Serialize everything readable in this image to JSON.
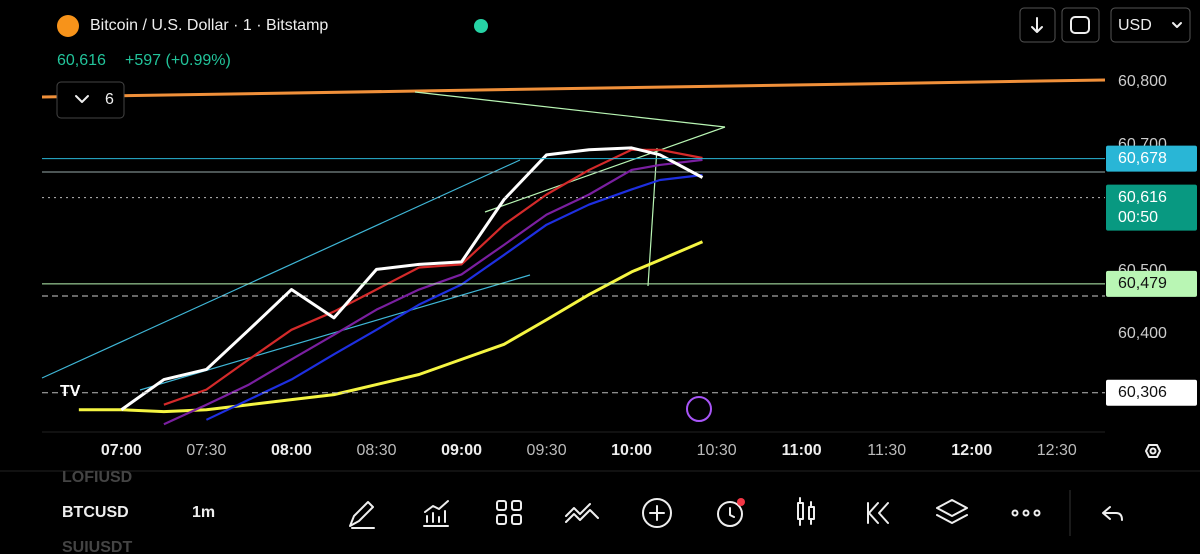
{
  "header": {
    "title": "Bitcoin / U.S. Dollar · 1 · Bitstamp",
    "price": "60,616",
    "change": "+597 (+0.99%)",
    "indicator_count": "6",
    "currency": "USD"
  },
  "chart_data": {
    "type": "line",
    "x": [
      "06:45",
      "07:00",
      "07:15",
      "07:30",
      "07:45",
      "08:00",
      "08:15",
      "08:30",
      "08:45",
      "09:00",
      "09:15",
      "09:30",
      "09:45",
      "10:00",
      "10:10",
      "10:25"
    ],
    "xlim": [
      "06:32",
      "12:47"
    ],
    "xticks": [
      "07:00",
      "07:30",
      "08:00",
      "08:30",
      "09:00",
      "09:30",
      "10:00",
      "10:30",
      "11:00",
      "11:30",
      "12:00",
      "12:30"
    ],
    "ylim": [
      60250,
      60930
    ],
    "yticks": [
      {
        "value": 60800,
        "label": "60,800"
      },
      {
        "value": 60700,
        "label": "60,700"
      },
      {
        "value": 60500,
        "label": "60,500"
      },
      {
        "value": 60400,
        "label": "60,400"
      }
    ],
    "series": [
      {
        "color": "#f5f542",
        "values": [
          60279,
          60279,
          60276,
          60279,
          60287,
          60295,
          60303,
          60319,
          60335,
          60359,
          60383,
          60422,
          60462,
          60498,
          60517,
          60546
        ]
      },
      {
        "color": "#1e2fe0",
        "values": [
          null,
          null,
          null,
          60263,
          60295,
          60327,
          60367,
          60406,
          60446,
          60478,
          60525,
          60573,
          60605,
          60629,
          60644,
          60652
        ]
      },
      {
        "color": "#7a1fa0",
        "values": [
          null,
          null,
          60256,
          60287,
          60319,
          60359,
          60398,
          60438,
          60470,
          60494,
          60541,
          60589,
          60621,
          60660,
          60668,
          60676
        ]
      },
      {
        "color": "#d42a2a",
        "values": [
          null,
          null,
          60287,
          60311,
          60359,
          60406,
          60435,
          60470,
          60505,
          60510,
          60573,
          60621,
          60660,
          60692,
          60692,
          60679
        ]
      },
      {
        "color": "#ffffff",
        "values": [
          null,
          60279,
          60327,
          60343,
          60406,
          60470,
          60425,
          60502,
          60510,
          60514,
          60613,
          60684,
          60692,
          60695,
          60684,
          60648
        ]
      }
    ],
    "price_lines": [
      {
        "value": 60678,
        "label": "60,678",
        "color": "#29b6d6",
        "text_color": "#ffffff",
        "line_style": "solid"
      },
      {
        "value": 60616,
        "label": "60,616",
        "countdown": "00:50",
        "color": "#089981",
        "text_color": "#ffffff",
        "line_style": "dotted"
      },
      {
        "value": 60479,
        "label": "60,479",
        "color": "#b9f6b4",
        "text_color": "#111111",
        "line_style": "solid"
      },
      {
        "value": 60306,
        "label": "60,306",
        "color": "#ffffff",
        "text_color": "#111111",
        "line_style": "dashed"
      }
    ]
  },
  "toolbar": {
    "symbols": [
      "LOFIUSD",
      "BTCUSD",
      "SUIUSDT"
    ],
    "interval": "1m"
  }
}
